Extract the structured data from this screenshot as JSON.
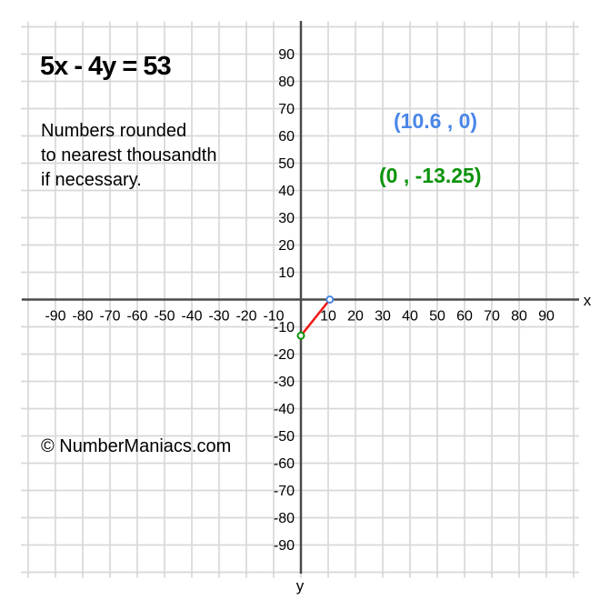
{
  "header": {
    "equation": "5x - 4y = 53"
  },
  "note": {
    "lines": [
      "Numbers rounded",
      "to nearest thousandth",
      "if necessary."
    ]
  },
  "footer": {
    "copyright": "© NumberManiacs.com"
  },
  "chart_data": {
    "type": "line",
    "title": "5x - 4y = 53",
    "xlabel": "x",
    "ylabel": "y",
    "xlim": [
      -100,
      100
    ],
    "ylim": [
      -100,
      100
    ],
    "grid": true,
    "grid_step": 10,
    "tick_step": 10,
    "tick_values": [
      -90,
      -80,
      -70,
      -60,
      -50,
      -40,
      -30,
      -20,
      -10,
      10,
      20,
      30,
      40,
      50,
      60,
      70,
      80,
      90
    ],
    "segment": [
      [
        0,
        -13.25
      ],
      [
        10.6,
        0
      ]
    ],
    "points": [
      {
        "x": 10.6,
        "y": 0,
        "role": "x-intercept",
        "label": "(10.6 , 0)",
        "color_key": "x_intercept"
      },
      {
        "x": 0,
        "y": -13.25,
        "role": "y-intercept",
        "label": "(0 , -13.25)",
        "color_key": "y_intercept"
      }
    ],
    "colors": {
      "grid": "#d8d8d8",
      "axis": "#4a4a4a",
      "segment": "#f11717",
      "x_intercept": "#4a86e8",
      "y_intercept": "#0a930a"
    }
  }
}
